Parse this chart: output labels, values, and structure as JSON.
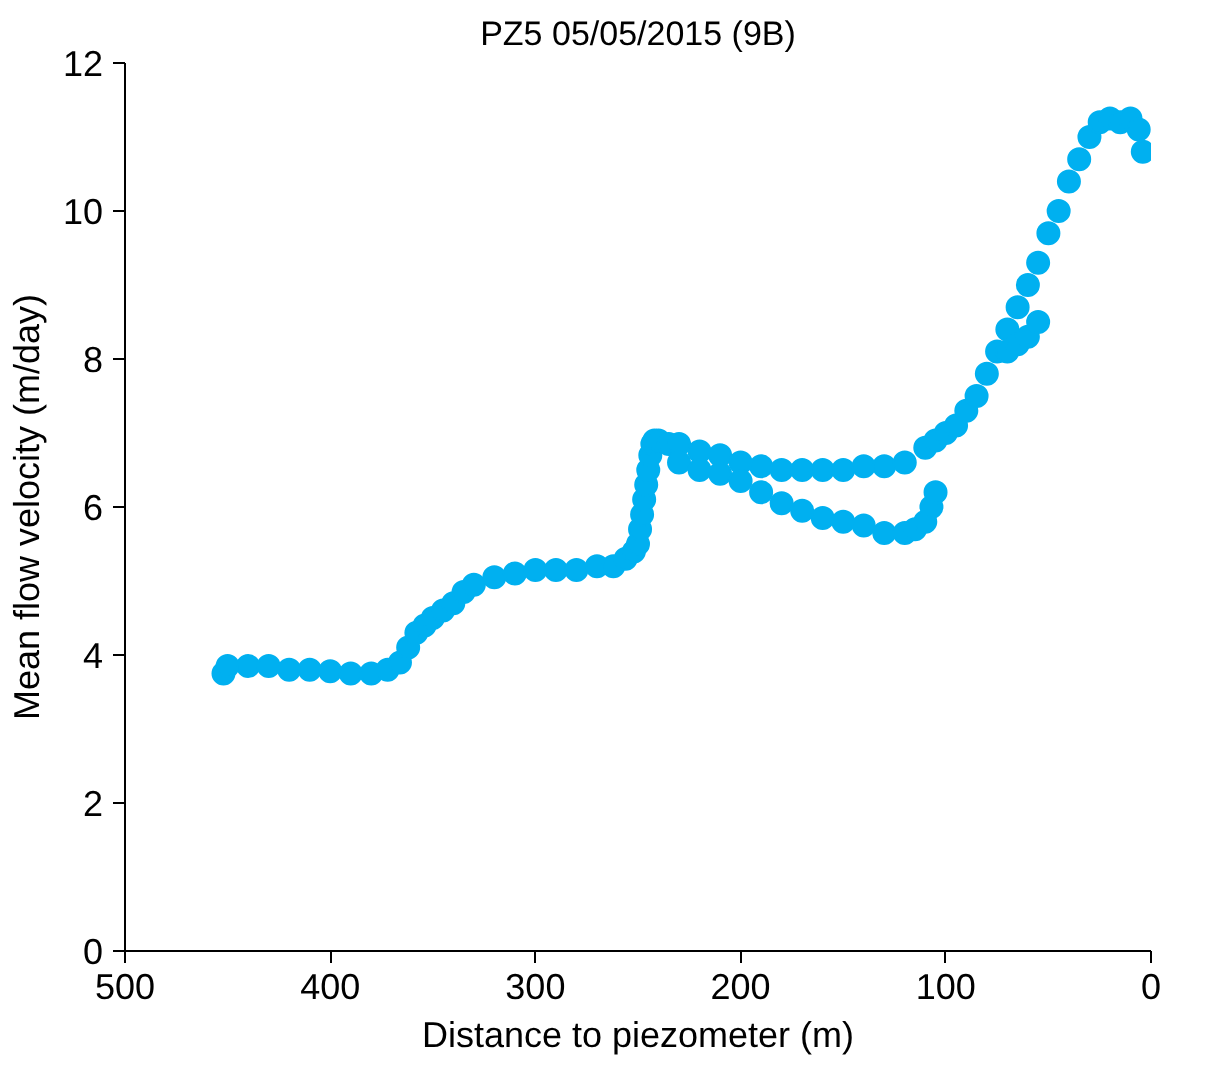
{
  "chart_data": {
    "type": "scatter",
    "title": "PZ5 05/05/2015 (9B)",
    "xlabel": "Distance to piezometer (m)",
    "ylabel": "Mean flow velocity (m/day)",
    "xlim": [
      500,
      0
    ],
    "xticks": [
      500,
      400,
      300,
      200,
      100,
      0
    ],
    "ylim": [
      0,
      12
    ],
    "yticks": [
      0,
      2,
      4,
      6,
      8,
      10,
      12
    ],
    "grid": false,
    "marker": "circle",
    "series": [
      {
        "color": "#00b0f0",
        "x": [
          452,
          450,
          440,
          430,
          420,
          410,
          400,
          390,
          380,
          372,
          366,
          362,
          358,
          354,
          350,
          345,
          340,
          335,
          330,
          320,
          310,
          300,
          290,
          280,
          270,
          262,
          256,
          252,
          250,
          249,
          248,
          247,
          246,
          245,
          244,
          243,
          242,
          240,
          235,
          230,
          220,
          210,
          200,
          190,
          180,
          170,
          160,
          150,
          140,
          130,
          120,
          110,
          105,
          100,
          95,
          90,
          85,
          80,
          75,
          70,
          65,
          60,
          55,
          50,
          45,
          40,
          35,
          30,
          25,
          20,
          15,
          10,
          6,
          4,
          230,
          220,
          210,
          200,
          190,
          180,
          170,
          160,
          150,
          140,
          130,
          120,
          115,
          110,
          107,
          105,
          70,
          65,
          60,
          55
        ],
        "values": [
          3.75,
          3.85,
          3.85,
          3.85,
          3.8,
          3.8,
          3.78,
          3.75,
          3.75,
          3.8,
          3.9,
          4.1,
          4.3,
          4.4,
          4.5,
          4.6,
          4.7,
          4.85,
          4.95,
          5.05,
          5.1,
          5.15,
          5.15,
          5.15,
          5.2,
          5.2,
          5.3,
          5.4,
          5.5,
          5.7,
          5.9,
          6.1,
          6.3,
          6.5,
          6.7,
          6.85,
          6.9,
          6.9,
          6.85,
          6.85,
          6.75,
          6.7,
          6.6,
          6.55,
          6.5,
          6.5,
          6.5,
          6.5,
          6.55,
          6.55,
          6.6,
          6.8,
          6.9,
          7.0,
          7.1,
          7.3,
          7.5,
          7.8,
          8.1,
          8.4,
          8.7,
          9.0,
          9.3,
          9.7,
          10.0,
          10.4,
          10.7,
          11.0,
          11.2,
          11.25,
          11.2,
          11.25,
          11.1,
          10.8,
          6.6,
          6.5,
          6.45,
          6.35,
          6.2,
          6.05,
          5.95,
          5.85,
          5.8,
          5.75,
          5.65,
          5.65,
          5.7,
          5.8,
          6.0,
          6.2,
          8.1,
          8.2,
          8.3,
          8.5
        ]
      }
    ]
  }
}
